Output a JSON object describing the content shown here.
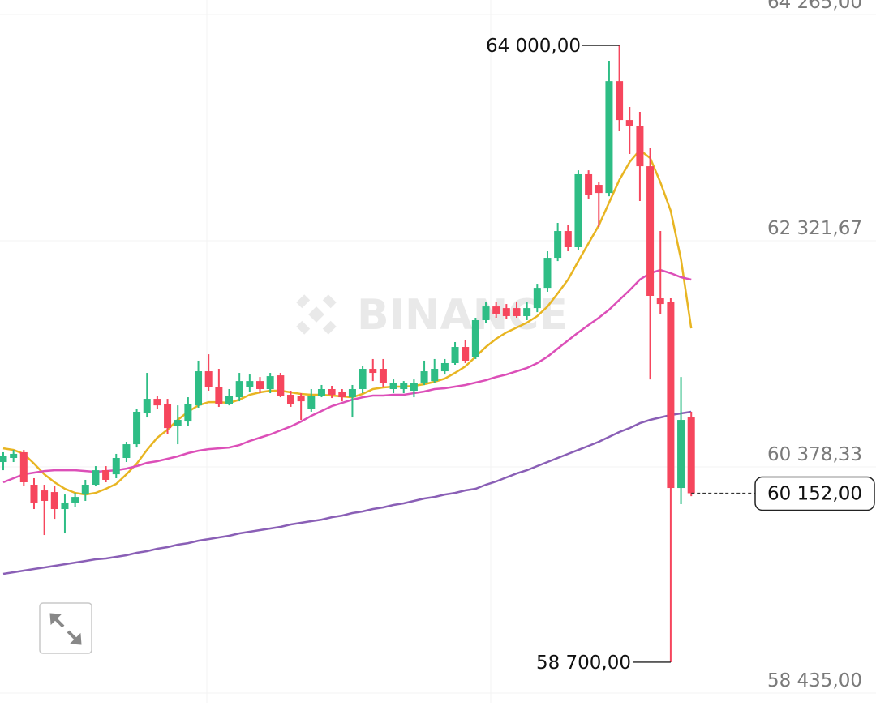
{
  "chart_data": {
    "type": "candlestick",
    "watermark": "BINANCE",
    "ylim": [
      58435,
      64265
    ],
    "yticks": [
      {
        "value": 58435,
        "label": "58 435,00"
      },
      {
        "value": 60378.33,
        "label": "60 378,33"
      },
      {
        "value": 62321.67,
        "label": "62 321,67"
      },
      {
        "value": 64265,
        "label": "64 265,00"
      }
    ],
    "up_color": "#2ebd85",
    "down_color": "#f6465d",
    "ohlc": [
      [
        60420,
        60504,
        60350,
        60469
      ],
      [
        60455,
        60524,
        60420,
        60490
      ],
      [
        60504,
        60524,
        60211,
        60246
      ],
      [
        60225,
        60281,
        60016,
        60072
      ],
      [
        60176,
        60225,
        59793,
        60086
      ],
      [
        60162,
        60211,
        59932,
        60016
      ],
      [
        60016,
        60141,
        59807,
        60072
      ],
      [
        60072,
        60155,
        60037,
        60120
      ],
      [
        60141,
        60267,
        60086,
        60225
      ],
      [
        60225,
        60385,
        60211,
        60350
      ],
      [
        60350,
        60385,
        60246,
        60267
      ],
      [
        60315,
        60490,
        60281,
        60455
      ],
      [
        60455,
        60594,
        60420,
        60573
      ],
      [
        60573,
        60873,
        60545,
        60852
      ],
      [
        60838,
        61186,
        60803,
        60963
      ],
      [
        60963,
        60991,
        60873,
        60907
      ],
      [
        60921,
        60963,
        60664,
        60712
      ],
      [
        60733,
        60907,
        60573,
        60782
      ],
      [
        60768,
        60977,
        60733,
        60921
      ],
      [
        60907,
        61291,
        60887,
        61200
      ],
      [
        61200,
        61346,
        61033,
        61061
      ],
      [
        61061,
        61221,
        60894,
        60921
      ],
      [
        60921,
        61047,
        60907,
        60991
      ],
      [
        60977,
        61186,
        60942,
        61116
      ],
      [
        61061,
        61172,
        61026,
        61116
      ],
      [
        61116,
        61151,
        61012,
        61047
      ],
      [
        61047,
        61186,
        61012,
        61158
      ],
      [
        61165,
        61186,
        60977,
        60991
      ],
      [
        60998,
        61033,
        60894,
        60921
      ],
      [
        60991,
        61012,
        60782,
        60942
      ],
      [
        60873,
        61047,
        60852,
        60991
      ],
      [
        60991,
        61082,
        60977,
        61047
      ],
      [
        61047,
        61075,
        60970,
        60998
      ],
      [
        61026,
        61047,
        60942,
        60977
      ],
      [
        60977,
        61082,
        60803,
        61047
      ],
      [
        61047,
        61242,
        61012,
        61221
      ],
      [
        61221,
        61305,
        61116,
        61186
      ],
      [
        61221,
        61305,
        61061,
        61096
      ],
      [
        61047,
        61130,
        61012,
        61096
      ],
      [
        61047,
        61116,
        61012,
        61096
      ],
      [
        61033,
        61130,
        60977,
        61096
      ],
      [
        61103,
        61291,
        61082,
        61200
      ],
      [
        61116,
        61305,
        61103,
        61221
      ],
      [
        61200,
        61305,
        61172,
        61270
      ],
      [
        61270,
        61451,
        61256,
        61409
      ],
      [
        61409,
        61465,
        61270,
        61291
      ],
      [
        61325,
        61660,
        61305,
        61639
      ],
      [
        61639,
        61792,
        61618,
        61757
      ],
      [
        61757,
        61799,
        61660,
        61695
      ],
      [
        61743,
        61778,
        61653,
        61674
      ],
      [
        61743,
        61792,
        61660,
        61674
      ],
      [
        61674,
        61792,
        61639,
        61743
      ],
      [
        61743,
        61952,
        61708,
        61917
      ],
      [
        61917,
        62231,
        61883,
        62175
      ],
      [
        62175,
        62475,
        62147,
        62405
      ],
      [
        62405,
        62454,
        62231,
        62266
      ],
      [
        62266,
        62927,
        62245,
        62893
      ],
      [
        62893,
        62927,
        62684,
        62718
      ],
      [
        62802,
        62823,
        62440,
        62732
      ],
      [
        62732,
        63868,
        62704,
        63693
      ],
      [
        63693,
        64000,
        63262,
        63359
      ],
      [
        63359,
        63471,
        63067,
        63310
      ],
      [
        63310,
        63429,
        62663,
        62962
      ],
      [
        62962,
        63122,
        61130,
        61848
      ],
      [
        61827,
        62405,
        61688,
        61778
      ],
      [
        61799,
        61827,
        58700,
        60197
      ],
      [
        60197,
        61151,
        60058,
        60782
      ],
      [
        60803,
        60852,
        60127,
        60152
      ]
    ],
    "lines": [
      {
        "color": "#e8b522",
        "values": [
          60538,
          60524,
          60490,
          60406,
          60315,
          60246,
          60190,
          60155,
          60141,
          60155,
          60190,
          60232,
          60315,
          60406,
          60524,
          60629,
          60699,
          60782,
          60852,
          60907,
          60935,
          60935,
          60928,
          60956,
          60998,
          61019,
          61033,
          61033,
          61019,
          61005,
          60998,
          60998,
          60991,
          60984,
          60977,
          61005,
          61047,
          61061,
          61068,
          61068,
          61075,
          61089,
          61110,
          61137,
          61186,
          61242,
          61325,
          61409,
          61479,
          61534,
          61576,
          61618,
          61674,
          61757,
          61869,
          61987,
          62147,
          62300,
          62454,
          62649,
          62844,
          62997,
          63101,
          63032,
          62823,
          62579,
          62161,
          61569
        ]
      },
      {
        "color": "#dc4fb8",
        "values": [
          60246,
          60281,
          60315,
          60329,
          60343,
          60350,
          60350,
          60350,
          60343,
          60336,
          60343,
          60350,
          60364,
          60385,
          60413,
          60427,
          60448,
          60469,
          60497,
          60517,
          60531,
          60538,
          60545,
          60566,
          60601,
          60629,
          60657,
          60692,
          60726,
          60768,
          60817,
          60859,
          60901,
          60928,
          60956,
          60977,
          60991,
          60991,
          60998,
          60998,
          61012,
          61026,
          61047,
          61054,
          61068,
          61082,
          61103,
          61123,
          61151,
          61172,
          61200,
          61228,
          61270,
          61325,
          61395,
          61465,
          61534,
          61597,
          61660,
          61729,
          61813,
          61897,
          61987,
          62043,
          62071,
          62043,
          62008,
          61987
        ]
      },
      {
        "color": "#8a5fb6",
        "values": [
          59459,
          59473,
          59487,
          59501,
          59514,
          59528,
          59542,
          59556,
          59570,
          59584,
          59591,
          59605,
          59619,
          59640,
          59654,
          59675,
          59689,
          59710,
          59723,
          59744,
          59758,
          59772,
          59786,
          59807,
          59821,
          59835,
          59849,
          59863,
          59884,
          59898,
          59912,
          59925,
          59946,
          59960,
          59981,
          59995,
          60016,
          60030,
          60051,
          60065,
          60086,
          60107,
          60120,
          60141,
          60155,
          60176,
          60190,
          60225,
          60253,
          60288,
          60322,
          60350,
          60385,
          60420,
          60455,
          60490,
          60524,
          60559,
          60594,
          60636,
          60678,
          60712,
          60754,
          60782,
          60803,
          60824,
          60838,
          60852
        ]
      }
    ],
    "high_label": {
      "value": 64000,
      "label": "64 000,00"
    },
    "low_label": {
      "value": 58700,
      "label": "58 700,00"
    },
    "last_price": {
      "value": 60152,
      "label": "60 152,00"
    }
  }
}
